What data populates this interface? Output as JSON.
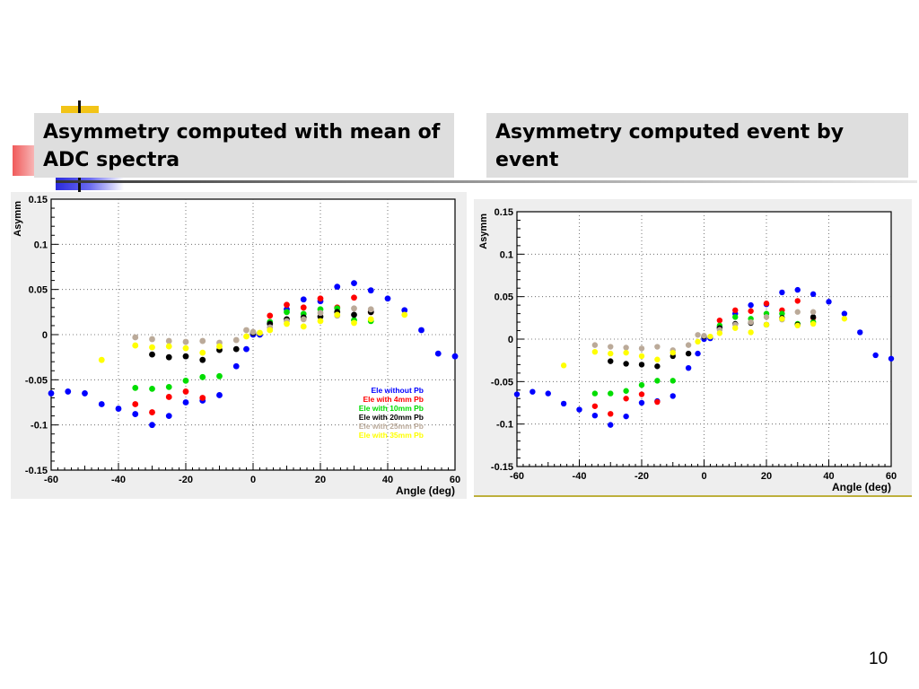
{
  "slide": {
    "left_heading": "Asymmetry computed with mean of ADC spectra",
    "right_heading": "Asymmetry computed event by event",
    "page_number": "10"
  },
  "chart_data": [
    {
      "type": "scatter",
      "title": "",
      "xlabel": "Angle (deg)",
      "ylabel": "Asymm",
      "xlim": [
        -60,
        60
      ],
      "ylim": [
        -0.15,
        0.15
      ],
      "xticks": [
        "-60",
        "-40",
        "-20",
        "0",
        "20",
        "40",
        "60"
      ],
      "yticks": [
        "0.15",
        "0.1",
        "0.05",
        "0",
        "-0.05",
        "-0.1",
        "-0.15"
      ],
      "grid": true,
      "legend_position": "bottom-right",
      "series": [
        {
          "name": "Ele without  Pb",
          "color": "#0000ff",
          "points": [
            [
              -60,
              -0.065
            ],
            [
              -55,
              -0.063
            ],
            [
              -50,
              -0.065
            ],
            [
              -45,
              -0.077
            ],
            [
              -40,
              -0.082
            ],
            [
              -35,
              -0.088
            ],
            [
              -30,
              -0.1
            ],
            [
              -25,
              -0.09
            ],
            [
              -20,
              -0.075
            ],
            [
              -15,
              -0.073
            ],
            [
              -10,
              -0.067
            ],
            [
              -5,
              -0.035
            ],
            [
              -2,
              -0.016
            ],
            [
              0,
              0
            ],
            [
              2,
              0
            ],
            [
              5,
              0.012
            ],
            [
              10,
              0.028
            ],
            [
              15,
              0.039
            ],
            [
              20,
              0.037
            ],
            [
              25,
              0.053
            ],
            [
              30,
              0.057
            ],
            [
              35,
              0.049
            ],
            [
              40,
              0.04
            ],
            [
              45,
              0.027
            ],
            [
              50,
              0.005
            ],
            [
              55,
              -0.021
            ],
            [
              60,
              -0.024
            ]
          ]
        },
        {
          "name": "Ele with 4mm Pb",
          "color": "#ff0000",
          "points": [
            [
              -35,
              -0.077
            ],
            [
              -30,
              -0.086
            ],
            [
              -25,
              -0.069
            ],
            [
              -20,
              -0.063
            ],
            [
              -15,
              -0.07
            ],
            [
              5,
              0.021
            ],
            [
              10,
              0.033
            ],
            [
              15,
              0.03
            ],
            [
              20,
              0.04
            ],
            [
              25,
              0.03
            ],
            [
              30,
              0.041
            ],
            [
              35,
              0.025
            ]
          ]
        },
        {
          "name": "Ele with 10mm Pb",
          "color": "#00dd00",
          "points": [
            [
              -35,
              -0.059
            ],
            [
              -30,
              -0.06
            ],
            [
              -25,
              -0.058
            ],
            [
              -20,
              -0.051
            ],
            [
              -15,
              -0.047
            ],
            [
              -10,
              -0.046
            ],
            [
              5,
              0.014
            ],
            [
              10,
              0.025
            ],
            [
              15,
              0.023
            ],
            [
              20,
              0.028
            ],
            [
              25,
              0.029
            ],
            [
              30,
              0.016
            ],
            [
              35,
              0.015
            ]
          ]
        },
        {
          "name": "Ele with 20mm Pb",
          "color": "#000000",
          "points": [
            [
              -30,
              -0.022
            ],
            [
              -25,
              -0.025
            ],
            [
              -20,
              -0.024
            ],
            [
              -15,
              -0.028
            ],
            [
              -10,
              -0.017
            ],
            [
              -5,
              -0.016
            ],
            [
              0,
              0.002
            ],
            [
              5,
              0.012
            ],
            [
              10,
              0.017
            ],
            [
              15,
              0.019
            ],
            [
              20,
              0.02
            ],
            [
              25,
              0.025
            ],
            [
              30,
              0.022
            ],
            [
              35,
              0.025
            ]
          ]
        },
        {
          "name": "Ele with 25mm Pb",
          "color": "#bbaa99",
          "points": [
            [
              -35,
              -0.003
            ],
            [
              -30,
              -0.005
            ],
            [
              -25,
              -0.007
            ],
            [
              -20,
              -0.008
            ],
            [
              -15,
              -0.007
            ],
            [
              -10,
              -0.009
            ],
            [
              -5,
              -0.006
            ],
            [
              -2,
              0.005
            ],
            [
              0,
              0.003
            ],
            [
              5,
              0.008
            ],
            [
              10,
              0.015
            ],
            [
              15,
              0.017
            ],
            [
              20,
              0.024
            ],
            [
              25,
              0.021
            ],
            [
              30,
              0.029
            ],
            [
              35,
              0.028
            ]
          ]
        },
        {
          "name": "Ele with 35mm Pb",
          "color": "#ffff00",
          "points": [
            [
              -45,
              -0.028
            ],
            [
              -35,
              -0.012
            ],
            [
              -30,
              -0.014
            ],
            [
              -25,
              -0.013
            ],
            [
              -20,
              -0.015
            ],
            [
              -15,
              -0.02
            ],
            [
              -10,
              -0.013
            ],
            [
              -2,
              -0.002
            ],
            [
              2,
              0.002
            ],
            [
              5,
              0.005
            ],
            [
              10,
              0.012
            ],
            [
              15,
              0.009
            ],
            [
              20,
              0.015
            ],
            [
              25,
              0.022
            ],
            [
              30,
              0.013
            ],
            [
              35,
              0.017
            ],
            [
              45,
              0.022
            ]
          ]
        }
      ]
    },
    {
      "type": "scatter",
      "title": "",
      "xlabel": "Angle (deg)",
      "ylabel": "Asymm",
      "xlim": [
        -60,
        60
      ],
      "ylim": [
        -0.15,
        0.15
      ],
      "xticks": [
        "-60",
        "-40",
        "-20",
        "0",
        "20",
        "40",
        "60"
      ],
      "yticks": [
        "0.15",
        "0.1",
        "0.05",
        "0",
        "-0.05",
        "-0.1",
        "-0.15"
      ],
      "grid": true,
      "series": [
        {
          "color": "#0000ff",
          "points": [
            [
              -60,
              -0.065
            ],
            [
              -55,
              -0.062
            ],
            [
              -50,
              -0.064
            ],
            [
              -45,
              -0.076
            ],
            [
              -40,
              -0.083
            ],
            [
              -35,
              -0.09
            ],
            [
              -30,
              -0.101
            ],
            [
              -25,
              -0.091
            ],
            [
              -20,
              -0.075
            ],
            [
              -15,
              -0.073
            ],
            [
              -10,
              -0.067
            ],
            [
              -5,
              -0.034
            ],
            [
              -2,
              -0.017
            ],
            [
              0,
              0
            ],
            [
              2,
              0.001
            ],
            [
              5,
              0.014
            ],
            [
              10,
              0.03
            ],
            [
              15,
              0.04
            ],
            [
              20,
              0.041
            ],
            [
              25,
              0.055
            ],
            [
              30,
              0.058
            ],
            [
              35,
              0.053
            ],
            [
              40,
              0.044
            ],
            [
              45,
              0.03
            ],
            [
              50,
              0.008
            ],
            [
              55,
              -0.019
            ],
            [
              60,
              -0.023
            ]
          ]
        },
        {
          "name": "",
          "color": "#ff0000",
          "points": [
            [
              -35,
              -0.079
            ],
            [
              -30,
              -0.088
            ],
            [
              -25,
              -0.07
            ],
            [
              -20,
              -0.065
            ],
            [
              -15,
              -0.074
            ],
            [
              5,
              0.022
            ],
            [
              10,
              0.034
            ],
            [
              15,
              0.033
            ],
            [
              20,
              0.042
            ],
            [
              25,
              0.034
            ],
            [
              30,
              0.045
            ],
            [
              35,
              0.025
            ]
          ]
        },
        {
          "color": "#00dd00",
          "points": [
            [
              -35,
              -0.064
            ],
            [
              -30,
              -0.064
            ],
            [
              -25,
              -0.061
            ],
            [
              -20,
              -0.054
            ],
            [
              -15,
              -0.049
            ],
            [
              -10,
              -0.049
            ],
            [
              5,
              0.016
            ],
            [
              10,
              0.026
            ],
            [
              15,
              0.024
            ],
            [
              20,
              0.03
            ],
            [
              25,
              0.03
            ],
            [
              30,
              0.018
            ],
            [
              35,
              0.02
            ]
          ]
        },
        {
          "color": "#000000",
          "points": [
            [
              -30,
              -0.026
            ],
            [
              -25,
              -0.029
            ],
            [
              -20,
              -0.03
            ],
            [
              -15,
              -0.032
            ],
            [
              -10,
              -0.02
            ],
            [
              -5,
              -0.017
            ],
            [
              0,
              0.003
            ],
            [
              5,
              0.013
            ],
            [
              10,
              0.018
            ],
            [
              15,
              0.019
            ],
            [
              20,
              0.017
            ],
            [
              25,
              0.025
            ],
            [
              30,
              0.017
            ],
            [
              35,
              0.026
            ]
          ]
        },
        {
          "color": "#bbaa99",
          "points": [
            [
              -35,
              -0.007
            ],
            [
              -30,
              -0.009
            ],
            [
              -25,
              -0.01
            ],
            [
              -20,
              -0.011
            ],
            [
              -15,
              -0.009
            ],
            [
              -10,
              -0.013
            ],
            [
              -5,
              -0.007
            ],
            [
              -2,
              0.005
            ],
            [
              0,
              0.004
            ],
            [
              5,
              0.011
            ],
            [
              10,
              0.017
            ],
            [
              15,
              0.02
            ],
            [
              20,
              0.026
            ],
            [
              25,
              0.023
            ],
            [
              30,
              0.032
            ],
            [
              35,
              0.032
            ]
          ]
        },
        {
          "color": "#ffff00",
          "points": [
            [
              -45,
              -0.031
            ],
            [
              -35,
              -0.015
            ],
            [
              -30,
              -0.017
            ],
            [
              -25,
              -0.016
            ],
            [
              -20,
              -0.02
            ],
            [
              -15,
              -0.024
            ],
            [
              -10,
              -0.016
            ],
            [
              -2,
              -0.003
            ],
            [
              2,
              0.003
            ],
            [
              5,
              0.007
            ],
            [
              10,
              0.013
            ],
            [
              15,
              0.008
            ],
            [
              20,
              0.017
            ],
            [
              25,
              0.024
            ],
            [
              30,
              0.016
            ],
            [
              35,
              0.018
            ],
            [
              45,
              0.024
            ]
          ]
        }
      ]
    }
  ]
}
